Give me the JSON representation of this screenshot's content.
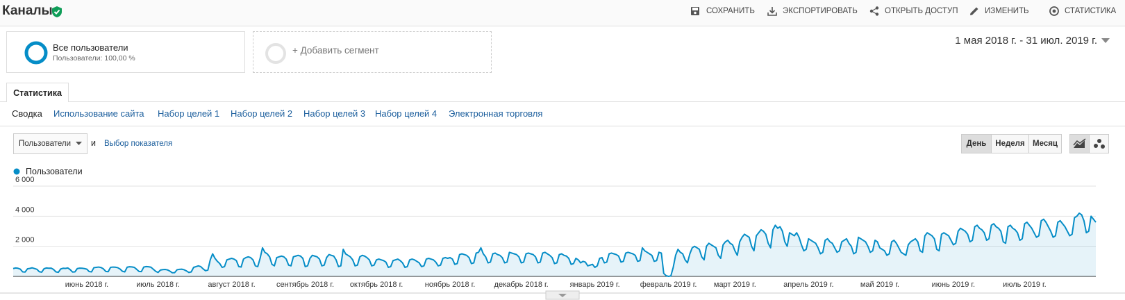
{
  "header": {
    "title": "Каналы",
    "actions": [
      "СОХРАНИТЬ",
      "ЭКСПОРТИРОВАТЬ",
      "ОТКРЫТЬ ДОСТУП",
      "ИЗМЕНИТЬ",
      "СТАТИСТИКА"
    ]
  },
  "segments": [
    {
      "title": "Все пользователи",
      "subtitle": "Пользователи: 100,00 %"
    },
    {
      "title": "+ Добавить сегмент"
    }
  ],
  "date_range": "1 мая 2018 г. - 31 июл. 2019 г.",
  "tabs": [
    "Статистика"
  ],
  "subnav": [
    "Сводка",
    "Использование сайта",
    "Набор целей 1",
    "Набор целей 2",
    "Набор целей 3",
    "Набор целей 4",
    "Электронная торговля"
  ],
  "controls": {
    "metric": "Пользователи",
    "conjunction": "и",
    "metric_picker": "Выбор показателя",
    "periods": [
      "День",
      "Неделя",
      "Месяц"
    ]
  },
  "chart_data": {
    "type": "line",
    "categories": [
      null,
      null,
      null,
      null,
      null,
      null,
      null,
      null,
      null,
      null,
      null,
      null,
      null,
      null,
      null,
      null,
      null,
      null,
      null,
      null,
      null,
      null,
      null,
      null,
      null,
      null,
      null,
      null,
      null,
      null,
      null,
      "июнь 2018 г.",
      null,
      null,
      null,
      null,
      null,
      null,
      null,
      null,
      null,
      null,
      null,
      null,
      null,
      null,
      null,
      null,
      null,
      null,
      null,
      null,
      null,
      null,
      null,
      null,
      null,
      null,
      null,
      null,
      null,
      "июль 2018 г.",
      null,
      null,
      null,
      null,
      null,
      null,
      null,
      null,
      null,
      null,
      null,
      null,
      null,
      null,
      null,
      null,
      null,
      null,
      null,
      null,
      null,
      null,
      null,
      null,
      null,
      null,
      null,
      null,
      null,
      null,
      "август 2018 г.",
      null,
      null,
      null,
      null,
      null,
      null,
      null,
      null,
      null,
      null,
      null,
      null,
      null,
      null,
      null,
      null,
      null,
      null,
      null,
      null,
      null,
      null,
      null,
      null,
      null,
      null,
      null,
      null,
      null,
      null,
      "сентябрь 2018 г.",
      null,
      null,
      null,
      null,
      null,
      null,
      null,
      null,
      null,
      null,
      null,
      null,
      null,
      null,
      null,
      null,
      null,
      null,
      null,
      null,
      null,
      null,
      null,
      null,
      null,
      null,
      null,
      null,
      null,
      "октябрь 2018 г.",
      null,
      null,
      null,
      null,
      null,
      null,
      null,
      null,
      null,
      null,
      null,
      null,
      null,
      null,
      null,
      null,
      null,
      null,
      null,
      null,
      null,
      null,
      null,
      null,
      null,
      null,
      null,
      null,
      null,
      null,
      "ноябрь 2018 г.",
      null,
      null,
      null,
      null,
      null,
      null,
      null,
      null,
      null,
      null,
      null,
      null,
      null,
      null,
      null,
      null,
      null,
      null,
      null,
      null,
      null,
      null,
      null,
      null,
      null,
      null,
      null,
      null,
      null,
      "декабрь 2018 г.",
      null,
      null,
      null,
      null,
      null,
      null,
      null,
      null,
      null,
      null,
      null,
      null,
      null,
      null,
      null,
      null,
      null,
      null,
      null,
      null,
      null,
      null,
      null,
      null,
      null,
      null,
      null,
      null,
      null,
      null,
      "январь 2019 г.",
      null,
      null,
      null,
      null,
      null,
      null,
      null,
      null,
      null,
      null,
      null,
      null,
      null,
      null,
      null,
      null,
      null,
      null,
      null,
      null,
      null,
      null,
      null,
      null,
      null,
      null,
      null,
      null,
      null,
      null,
      "февраль 2019 г.",
      null,
      null,
      null,
      null,
      null,
      null,
      null,
      null,
      null,
      null,
      null,
      null,
      null,
      null,
      null,
      null,
      null,
      null,
      null,
      null,
      null,
      null,
      null,
      null,
      null,
      null,
      null,
      "март 2019 г.",
      null,
      null,
      null,
      null,
      null,
      null,
      null,
      null,
      null,
      null,
      null,
      null,
      null,
      null,
      null,
      null,
      null,
      null,
      null,
      null,
      null,
      null,
      null,
      null,
      null,
      null,
      null,
      null,
      null,
      null,
      "апрель 2019 г.",
      null,
      null,
      null,
      null,
      null,
      null,
      null,
      null,
      null,
      null,
      null,
      null,
      null,
      null,
      null,
      null,
      null,
      null,
      null,
      null,
      null,
      null,
      null,
      null,
      null,
      null,
      null,
      null,
      null,
      "май 2019 г.",
      null,
      null,
      null,
      null,
      null,
      null,
      null,
      null,
      null,
      null,
      null,
      null,
      null,
      null,
      null,
      null,
      null,
      null,
      null,
      null,
      null,
      null,
      null,
      null,
      null,
      null,
      null,
      null,
      null,
      null,
      "июнь 2019 г.",
      null,
      null,
      null,
      null,
      null,
      null,
      null,
      null,
      null,
      null,
      null,
      null,
      null,
      null,
      null,
      null,
      null,
      null,
      null,
      null,
      null,
      null,
      null,
      null,
      null,
      null,
      null,
      null,
      null,
      "июль 2019 г.",
      null,
      null,
      null,
      null,
      null,
      null,
      null,
      null,
      null,
      null,
      null,
      null,
      null,
      null,
      null,
      null,
      null,
      null,
      null,
      null,
      null,
      null,
      null,
      null,
      null,
      null,
      null,
      null,
      null,
      null
    ],
    "series": [
      {
        "name": "Пользователи",
        "color": "#058dc7",
        "values": [
          520,
          560,
          540,
          480,
          300,
          290,
          500,
          530,
          570,
          520,
          470,
          310,
          280,
          510,
          560,
          540,
          550,
          460,
          300,
          270,
          490,
          540,
          530,
          560,
          450,
          290,
          300,
          520,
          550,
          540,
          520,
          480,
          320,
          300,
          580,
          600,
          620,
          590,
          500,
          330,
          310,
          600,
          620,
          610,
          580,
          490,
          340,
          300,
          610,
          640,
          630,
          600,
          470,
          330,
          320,
          620,
          650,
          640,
          610,
          480,
          340,
          260,
          420,
          450,
          460,
          430,
          350,
          240,
          250,
          440,
          470,
          480,
          440,
          360,
          260,
          300,
          600,
          650,
          700,
          650,
          500,
          380,
          420,
          1100,
          1500,
          1200,
          1000,
          850,
          600,
          650,
          1100,
          1150,
          1200,
          1150,
          1050,
          650,
          620,
          1150,
          1250,
          1300,
          1250,
          1100,
          700,
          650,
          1200,
          1900,
          1600,
          1500,
          1300,
          800,
          700,
          1250,
          1300,
          1350,
          1300,
          1150,
          750,
          700,
          1300,
          1350,
          1400,
          1350,
          1200,
          650,
          700,
          1200,
          1400,
          1350,
          1300,
          1150,
          700,
          750,
          1250,
          1450,
          1400,
          1350,
          1100,
          650,
          700,
          1800,
          1500,
          1400,
          1300,
          1100,
          700,
          750,
          1300,
          1400,
          1350,
          1250,
          1100,
          700,
          750,
          1100,
          1150,
          1100,
          1050,
          950,
          600,
          650,
          1050,
          1100,
          1150,
          1050,
          900,
          600,
          650,
          1100,
          1150,
          1100,
          1000,
          900,
          650,
          700,
          1150,
          1200,
          1150,
          1100,
          950,
          700,
          750,
          1200,
          1250,
          1200,
          1250,
          1150,
          800,
          850,
          1450,
          1500,
          1450,
          1400,
          1250,
          850,
          900,
          1550,
          1600,
          1900,
          1500,
          1300,
          900,
          950,
          1500,
          1550,
          1450,
          1400,
          1250,
          900,
          950,
          1600,
          1550,
          1500,
          1450,
          1300,
          900,
          950,
          1500,
          1550,
          1500,
          1450,
          1300,
          900,
          950,
          1550,
          1600,
          1500,
          1400,
          1250,
          850,
          900,
          1450,
          1500,
          1400,
          1350,
          1200,
          800,
          850,
          1200,
          1100,
          900,
          1000,
          950,
          700,
          750,
          800,
          600,
          700,
          1200,
          1250,
          900,
          950,
          1500,
          1550,
          1500,
          1450,
          1350,
          950,
          1000,
          1550,
          1600,
          1550,
          1500,
          1400,
          1000,
          1050,
          1900,
          1700,
          1600,
          1500,
          1400,
          1000,
          1050,
          1600,
          1550,
          200,
          50,
          0,
          30,
          600,
          1400,
          1800,
          1600,
          1500,
          1100,
          900,
          1500,
          1900,
          2000,
          1900,
          1800,
          1300,
          1100,
          2000,
          2200,
          2100,
          2000,
          1900,
          1400,
          1200,
          2100,
          2300,
          2400,
          2200,
          2100,
          1700,
          1400,
          2300,
          2600,
          2800,
          2700,
          2600,
          2000,
          1700,
          2700,
          2900,
          3100,
          3000,
          2800,
          2200,
          1900,
          3100,
          3400,
          3200,
          3300,
          3000,
          2300,
          2000,
          2900,
          2800,
          2700,
          2900,
          2600,
          2100,
          1700,
          1800,
          2500,
          2400,
          2300,
          2200,
          1900,
          1500,
          1600,
          2400,
          2500,
          2300,
          2200,
          1900,
          1600,
          1700,
          2300,
          2400,
          2500,
          2200,
          2000,
          1500,
          1600,
          2600,
          2500,
          2400,
          2300,
          2000,
          1600,
          1700,
          2400,
          2300,
          1900,
          1800,
          1700,
          1400,
          1500,
          2300,
          2400,
          2200,
          1900,
          1600,
          1500,
          1400,
          2100,
          2300,
          2400,
          2500,
          2300,
          1700,
          1600,
          2700,
          2900,
          2800,
          2700,
          2500,
          1800,
          1700,
          2800,
          2900,
          2800,
          2700,
          2400,
          2100,
          2200,
          3000,
          3200,
          3100,
          3000,
          2800,
          2300,
          2400,
          3300,
          3400,
          3200,
          3100,
          2900,
          2400,
          2500,
          3400,
          3500,
          3300,
          3200,
          3000,
          2300,
          2200,
          3300,
          3400,
          3200,
          3100,
          2900,
          2400,
          2500,
          3500,
          3600,
          3400,
          3200,
          2900,
          2600,
          2700,
          3700,
          3800,
          3600,
          3300,
          3000,
          2600,
          2700,
          3600,
          3700,
          3500,
          3300,
          3000,
          2700,
          2800,
          3900,
          4000,
          4200,
          4100,
          3700,
          2900,
          3000,
          4000,
          3800,
          3600
        ]
      }
    ],
    "ylim": [
      0,
      6000
    ],
    "yticks": [
      {
        "value": 2000,
        "label": "2 000"
      },
      {
        "value": 4000,
        "label": "4 000"
      },
      {
        "value": 6000,
        "label": "6 000"
      }
    ],
    "grid": true
  }
}
